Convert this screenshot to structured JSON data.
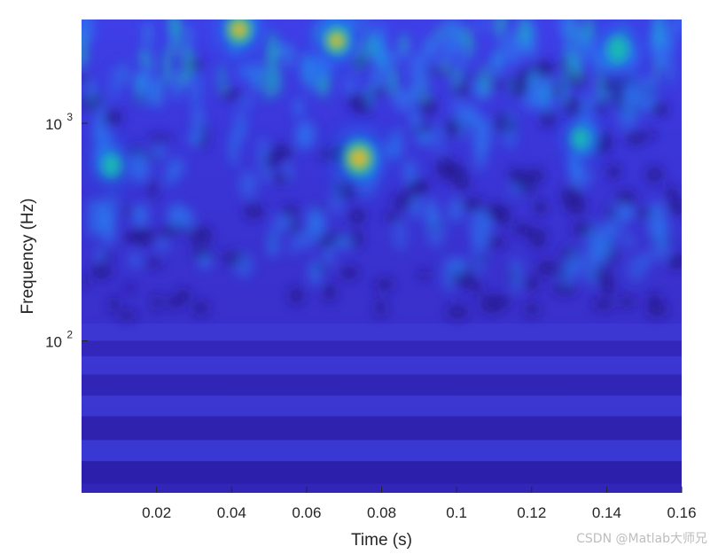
{
  "chart_data": {
    "type": "heatmap",
    "title": "",
    "xlabel": "Time (s)",
    "ylabel": "Frequency (Hz)",
    "xlim": [
      0,
      0.16
    ],
    "ylim": [
      20,
      3000
    ],
    "yscale": "log",
    "x_ticks": [
      {
        "value": 0.02,
        "label": "0.02"
      },
      {
        "value": 0.04,
        "label": "0.04"
      },
      {
        "value": 0.06,
        "label": "0.06"
      },
      {
        "value": 0.08,
        "label": "0.08"
      },
      {
        "value": 0.1,
        "label": "0.1"
      },
      {
        "value": 0.12,
        "label": "0.12"
      },
      {
        "value": 0.14,
        "label": "0.14"
      },
      {
        "value": 0.16,
        "label": "0.16"
      }
    ],
    "y_ticks": [
      {
        "value": 100,
        "base": "10",
        "exponent": "2"
      },
      {
        "value": 1000,
        "base": "10",
        "exponent": "3"
      }
    ],
    "colormap": "parula",
    "colors": {
      "background": "#3b2fd0",
      "low": "#2a1e9e",
      "mid": "#1f7ff5",
      "high": "#17c7a8",
      "peak": "#f2b826"
    },
    "hotspots": [
      {
        "time": 0.074,
        "freq": 690,
        "magnitude": 1.0
      },
      {
        "time": 0.008,
        "freq": 640,
        "magnitude": 0.45
      },
      {
        "time": 0.042,
        "freq": 2700,
        "magnitude": 0.75
      },
      {
        "time": 0.068,
        "freq": 2400,
        "magnitude": 0.65
      },
      {
        "time": 0.143,
        "freq": 2200,
        "magnitude": 0.6
      },
      {
        "time": 0.133,
        "freq": 850,
        "magnitude": 0.4
      }
    ]
  },
  "watermark": "CSDN @Matlab大师兄"
}
